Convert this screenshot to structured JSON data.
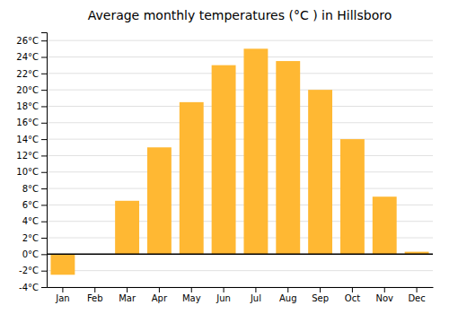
{
  "chart_data": {
    "type": "bar",
    "title": "Average monthly temperatures (°C ) in Hillsboro",
    "categories": [
      "Jan",
      "Feb",
      "Mar",
      "Apr",
      "May",
      "Jun",
      "Jul",
      "Aug",
      "Sep",
      "Oct",
      "Nov",
      "Dec"
    ],
    "values": [
      -2.5,
      0,
      6.5,
      13.0,
      18.5,
      23.0,
      25.0,
      23.5,
      20.0,
      14.0,
      7.0,
      0.3
    ],
    "color": "#FFB833",
    "ylim": [
      -4,
      27
    ],
    "yticks": [
      {
        "value": -4,
        "label": "-4°C"
      },
      {
        "value": -2,
        "label": "-2°C"
      },
      {
        "value": 0,
        "label": "0°C"
      },
      {
        "value": 2,
        "label": "2°C"
      },
      {
        "value": 4,
        "label": "4°C"
      },
      {
        "value": 6,
        "label": "6°C"
      },
      {
        "value": 8,
        "label": "8°C"
      },
      {
        "value": 10,
        "label": "10°C"
      },
      {
        "value": 12,
        "label": "12°C"
      },
      {
        "value": 14,
        "label": "14°C"
      },
      {
        "value": 16,
        "label": "16°C"
      },
      {
        "value": 18,
        "label": "18°C"
      },
      {
        "value": 20,
        "label": "20°C"
      },
      {
        "value": 22,
        "label": "22°C"
      },
      {
        "value": 24,
        "label": "24°C"
      },
      {
        "value": 26,
        "label": "26°C"
      }
    ],
    "grid": true
  }
}
